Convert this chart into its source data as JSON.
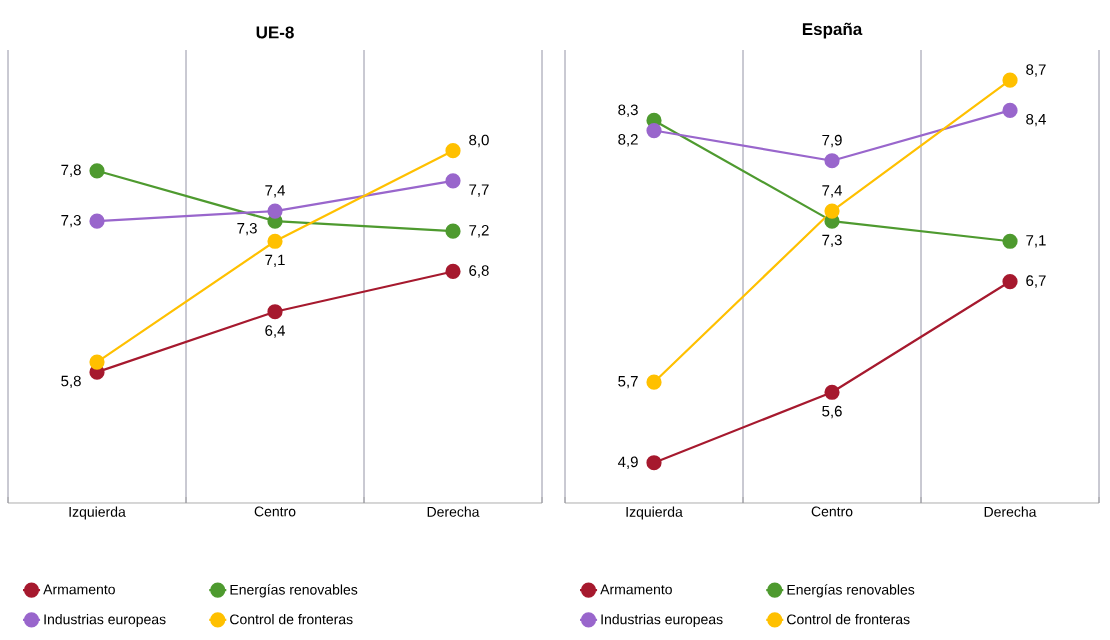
{
  "chart_data": [
    {
      "type": "line",
      "title": "UE-8",
      "categories": [
        "Izquierda",
        "Centro",
        "Derecha"
      ],
      "ylim": [
        4.5,
        9
      ],
      "tick_labels": "x",
      "grid": "x",
      "legend": "bottom",
      "marker": "circle",
      "series": [
        {
          "name": "Armamento",
          "color": "#a6192e",
          "values": [
            5.8,
            6.4,
            6.8
          ],
          "value_labels": [
            "5,8",
            "6,4",
            "6,8"
          ]
        },
        {
          "name": "Energías renovables",
          "color": "#4e9a2f",
          "values": [
            7.8,
            7.3,
            7.2
          ],
          "value_labels": [
            "7,8",
            "7,3",
            "7,2"
          ]
        },
        {
          "name": "Industrias europeas",
          "color": "#9966cc",
          "values": [
            7.3,
            7.4,
            7.7
          ],
          "value_labels": [
            "7,3",
            "7,4",
            "7,7"
          ]
        },
        {
          "name": "Control de fronteras",
          "color": "#ffc000",
          "values": [
            5.9,
            7.1,
            8.0
          ],
          "value_labels": [
            null,
            "7,1",
            "8,0"
          ]
        }
      ]
    },
    {
      "type": "line",
      "title": "España",
      "categories": [
        "Izquierda",
        "Centro",
        "Derecha"
      ],
      "ylim": [
        4.5,
        9
      ],
      "tick_labels": "x",
      "grid": "x",
      "legend": "bottom",
      "marker": "circle",
      "series": [
        {
          "name": "Armamento",
          "color": "#a6192e",
          "values": [
            4.9,
            5.6,
            6.7
          ],
          "value_labels": [
            "4,9",
            "5,6",
            "6,7"
          ]
        },
        {
          "name": "Energías renovables",
          "color": "#4e9a2f",
          "values": [
            8.3,
            7.3,
            7.1
          ],
          "value_labels": [
            "8,3",
            "7,3",
            "7,1"
          ]
        },
        {
          "name": "Industrias europeas",
          "color": "#9966cc",
          "values": [
            8.2,
            7.9,
            8.4
          ],
          "value_labels": [
            "8,2",
            "7,9",
            "8,4"
          ]
        },
        {
          "name": "Control de fronteras",
          "color": "#ffc000",
          "values": [
            5.7,
            7.4,
            8.7
          ],
          "value_labels": [
            "5,7",
            "7,4",
            "8,7"
          ]
        }
      ]
    }
  ]
}
